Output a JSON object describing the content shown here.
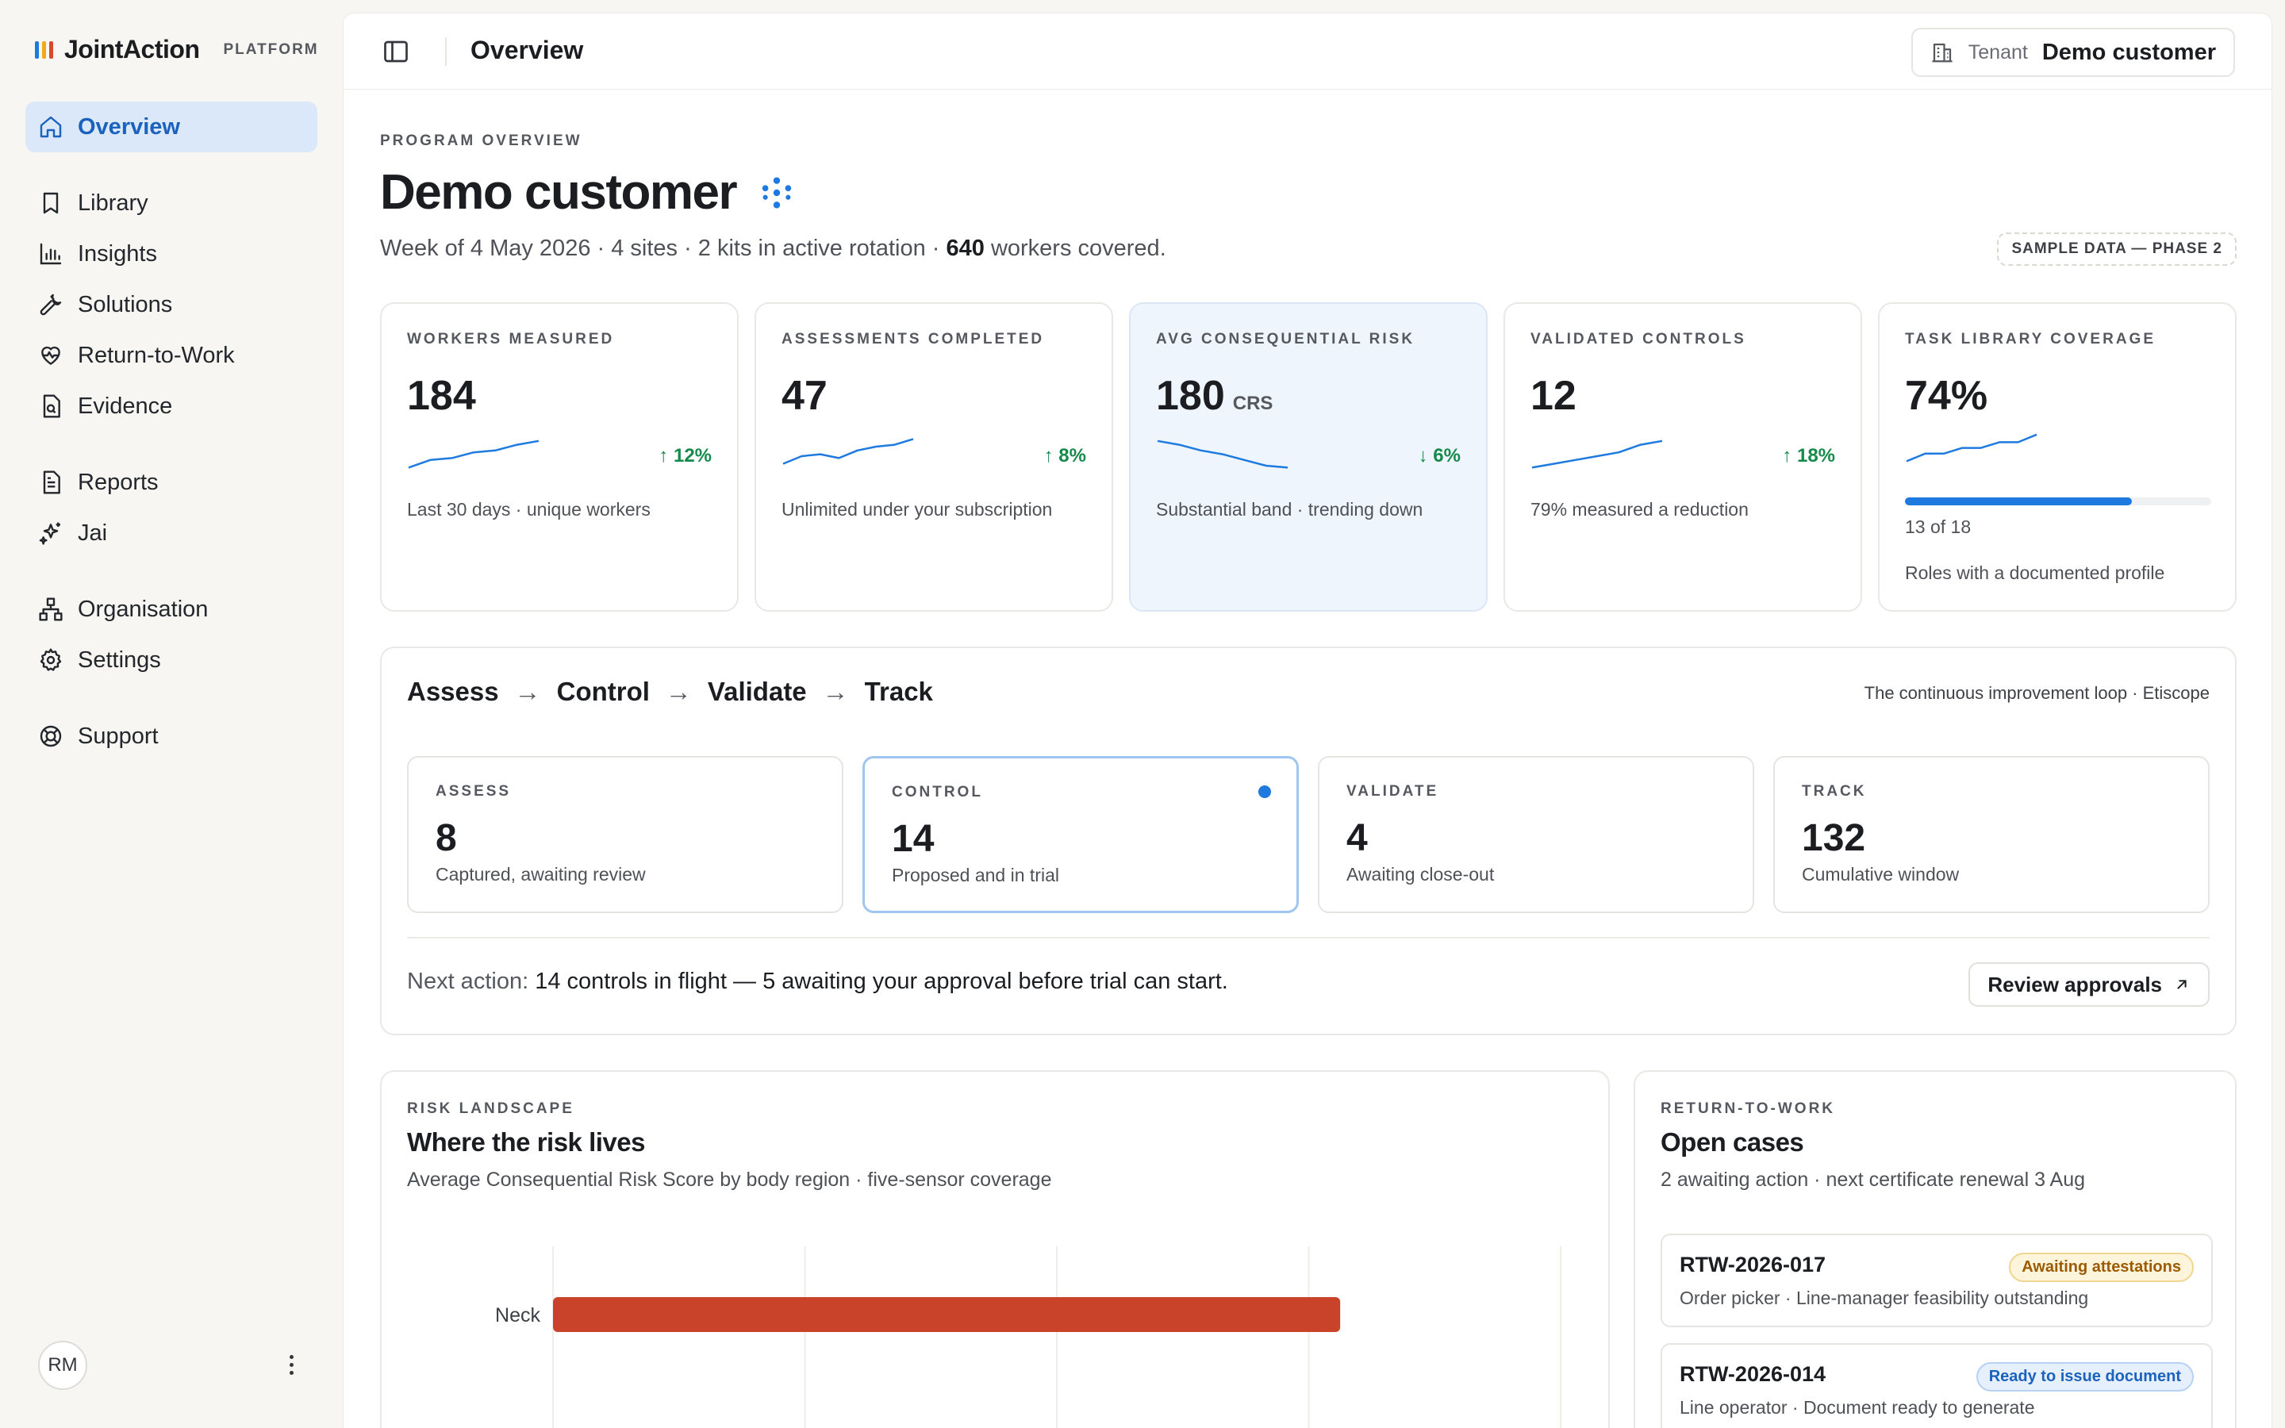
{
  "brand": {
    "name": "JointAction",
    "tag": "PLATFORM",
    "mark_colors": [
      "#1f7ae0",
      "#f2a81d",
      "#d9482b"
    ]
  },
  "sidebar": {
    "items": [
      {
        "label": "Overview",
        "icon": "home-icon",
        "active": true
      },
      {
        "label": "Library",
        "icon": "bookmark-icon"
      },
      {
        "label": "Insights",
        "icon": "bar-chart-icon"
      },
      {
        "label": "Solutions",
        "icon": "wrench-icon"
      },
      {
        "label": "Return-to-Work",
        "icon": "heart-pulse-icon"
      },
      {
        "label": "Evidence",
        "icon": "file-search-icon"
      },
      {
        "label": "Reports",
        "icon": "file-text-icon"
      },
      {
        "label": "Jai",
        "icon": "sparkles-icon"
      },
      {
        "label": "Organisation",
        "icon": "org-chart-icon"
      },
      {
        "label": "Settings",
        "icon": "gear-icon"
      },
      {
        "label": "Support",
        "icon": "lifebuoy-icon"
      }
    ],
    "user_initials": "RM"
  },
  "topbar": {
    "title": "Overview",
    "tenant_label": "Tenant",
    "tenant_value": "Demo customer"
  },
  "header": {
    "eyebrow": "PROGRAM OVERVIEW",
    "title": "Demo customer",
    "subtitle_pre": "Week of 4 May 2026 · 4 sites · 2 kits in active rotation · ",
    "subtitle_bold": "640",
    "subtitle_post": " workers covered.",
    "sample_badge": "SAMPLE DATA — PHASE 2"
  },
  "kpis": [
    {
      "label": "WORKERS MEASURED",
      "value": "184",
      "unit": "",
      "delta": "↑ 12%",
      "note": "Last 30 days · unique workers",
      "trend": [
        2,
        4,
        4.5,
        6,
        6.5,
        8,
        9
      ],
      "direction": "up"
    },
    {
      "label": "ASSESSMENTS COMPLETED",
      "value": "47",
      "unit": "",
      "delta": "↑ 8%",
      "note": "Unlimited under your subscription",
      "trend": [
        3,
        5,
        5.5,
        4.5,
        6.5,
        7.5,
        8,
        9.5
      ],
      "direction": "up"
    },
    {
      "label": "AVG CONSEQUENTIAL RISK",
      "value": "180",
      "unit": "CRS",
      "delta": "↓ 6%",
      "note": "Substantial band · trending down",
      "trend": [
        9,
        8,
        6.5,
        5.5,
        4,
        2.5,
        2
      ],
      "direction": "down"
    },
    {
      "label": "VALIDATED CONTROLS",
      "value": "12",
      "unit": "",
      "delta": "↑ 18%",
      "note": "79% measured a reduction",
      "trend": [
        2,
        3,
        4,
        5,
        6,
        8,
        9
      ],
      "direction": "up"
    },
    {
      "label": "TASK LIBRARY COVERAGE",
      "value": "74%",
      "unit": "",
      "delta": "",
      "note": "Roles with a documented profile",
      "trend": [
        2,
        4,
        4,
        5.5,
        5.5,
        7,
        7,
        9
      ],
      "direction": "up",
      "progress_text": "13 of 18",
      "progress": 0.74
    }
  ],
  "loop": {
    "steps": [
      "Assess",
      "Control",
      "Validate",
      "Track"
    ],
    "aside": "The continuous improvement loop · Etiscope",
    "stages": [
      {
        "label": "ASSESS",
        "value": "8",
        "note": "Captured, awaiting review"
      },
      {
        "label": "CONTROL",
        "value": "14",
        "note": "Proposed and in trial",
        "active": true
      },
      {
        "label": "VALIDATE",
        "value": "4",
        "note": "Awaiting close-out"
      },
      {
        "label": "TRACK",
        "value": "132",
        "note": "Cumulative window"
      }
    ],
    "next_label": "Next action:",
    "next_text": " 14 controls in flight — 5 awaiting your approval before trial can start.",
    "review_button": "Review approvals"
  },
  "risk": {
    "eyebrow": "RISK LANDSCAPE",
    "title": "Where the risk lives",
    "subtitle": "Average Consequential Risk Score by body region · five-sensor coverage"
  },
  "chart_data": {
    "type": "bar",
    "orientation": "horizontal",
    "title": "Where the risk lives",
    "categories": [
      "Neck"
    ],
    "values": [
      250
    ],
    "xlim": [
      0,
      320
    ],
    "grid": true,
    "bar_color": "#c9432b"
  },
  "rtw": {
    "eyebrow": "RETURN-TO-WORK",
    "title": "Open cases",
    "subtitle": "2 awaiting action · next certificate renewal 3 Aug",
    "cases": [
      {
        "id": "RTW-2026-017",
        "desc": "Order picker · Line-manager feasibility outstanding",
        "badge": "Awaiting attestations",
        "badge_type": "warn"
      },
      {
        "id": "RTW-2026-014",
        "desc": "Line operator · Document ready to generate",
        "badge": "Ready to issue document",
        "badge_type": "info"
      }
    ]
  }
}
